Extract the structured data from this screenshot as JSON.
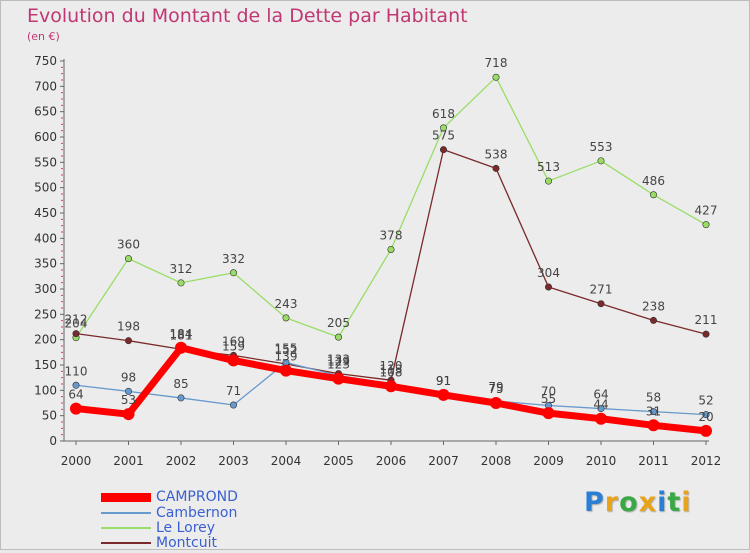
{
  "title": "Evolution du Montant de la Dette par Habitant",
  "subtitle": "(en €)",
  "logo": {
    "text": "Proxiti",
    "letter_colors": [
      "#2a7fd4",
      "#e8a31a",
      "#3aa845",
      "#e8a31a",
      "#2a7fd4",
      "#3aa845",
      "#e8a31a"
    ]
  },
  "legend": [
    {
      "name": "CAMPROND",
      "color": "#ff0000"
    },
    {
      "name": "Cambernon",
      "color": "#6699cc"
    },
    {
      "name": "Le Lorey",
      "color": "#99dd66"
    },
    {
      "name": "Montcuit",
      "color": "#7a2a2a"
    }
  ],
  "chart_data": {
    "type": "line",
    "title": "Evolution du Montant de la Dette par Habitant",
    "subtitle": "(en €)",
    "x": [
      "2000",
      "2001",
      "2002",
      "2003",
      "2004",
      "2005",
      "2006",
      "2007",
      "2008",
      "2009",
      "2010",
      "2011",
      "2012"
    ],
    "ylim": [
      0,
      750
    ],
    "yticks": [
      "0",
      "50",
      "100",
      "150",
      "200",
      "250",
      "300",
      "350",
      "400",
      "450",
      "500",
      "550",
      "600",
      "650",
      "700",
      "750"
    ],
    "grid": false,
    "legend_position": "bottom-left",
    "series": [
      {
        "name": "CAMPROND",
        "color": "#ff0000",
        "values": [
          64,
          53,
          184,
          159,
          139,
          123,
          108,
          91,
          75,
          55,
          44,
          31,
          20
        ]
      },
      {
        "name": "Cambernon",
        "color": "#6699cc",
        "values": [
          110,
          98,
          85,
          71,
          155,
          129,
          113,
          91,
          79,
          70,
          64,
          58,
          52
        ]
      },
      {
        "name": "Le Lorey",
        "color": "#99dd66",
        "values": [
          204,
          360,
          312,
          332,
          243,
          205,
          378,
          618,
          718,
          513,
          553,
          486,
          427
        ]
      },
      {
        "name": "Montcuit",
        "color": "#7a2a2a",
        "values": [
          212,
          198,
          181,
          169,
          152,
          133,
          120,
          575,
          538,
          304,
          271,
          238,
          211
        ]
      }
    ],
    "data_labels": [
      [
        "64",
        "53",
        "184",
        "159",
        "139",
        "123",
        "108",
        "91",
        "75",
        "55",
        "44",
        "31",
        "20"
      ],
      [
        "110",
        "98",
        "85",
        "71",
        "155",
        "129",
        "113",
        "91",
        "79",
        "70",
        "64",
        "58",
        "52"
      ],
      [
        "204",
        "360",
        "312",
        "332",
        "243",
        "205",
        "378",
        "618",
        "718",
        "513",
        "553",
        "486",
        "427"
      ],
      [
        "212",
        "198",
        "181",
        "169",
        "152",
        "133",
        "120",
        "575",
        "538",
        "304",
        "271",
        "238",
        "211"
      ]
    ]
  }
}
